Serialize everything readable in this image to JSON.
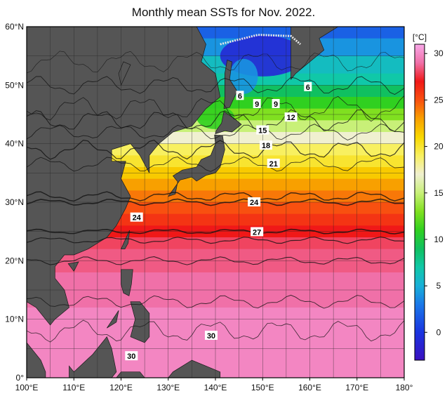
{
  "title": "Monthly mean SSTs for Nov. 2022.",
  "map": {
    "lon_range": [
      100,
      180
    ],
    "lat_range": [
      0,
      60
    ],
    "land_color": "#555555",
    "ice_color": "#e8e8e8",
    "grid_color": "#222222",
    "lon_ticks": [
      {
        "lon": 100,
        "label": "100°E"
      },
      {
        "lon": 110,
        "label": "110°E"
      },
      {
        "lon": 120,
        "label": "120°E"
      },
      {
        "lon": 130,
        "label": "130°E"
      },
      {
        "lon": 140,
        "label": "140°E"
      },
      {
        "lon": 150,
        "label": "150°E"
      },
      {
        "lon": 160,
        "label": "160°E"
      },
      {
        "lon": 170,
        "label": "170°E"
      },
      {
        "lon": 180,
        "label": "180°"
      }
    ],
    "lat_ticks": [
      {
        "lat": 0,
        "label": "0°"
      },
      {
        "lat": 10,
        "label": "10°N"
      },
      {
        "lat": 20,
        "label": "20°N"
      },
      {
        "lat": 30,
        "label": "30°N"
      },
      {
        "lat": 40,
        "label": "40°N"
      },
      {
        "lat": 50,
        "label": "50°N"
      },
      {
        "lat": 60,
        "label": "60°N"
      }
    ],
    "sst_bands": [
      {
        "lat_s": 58,
        "lat_n": 60,
        "sst": 2
      },
      {
        "lat_s": 55,
        "lat_n": 58,
        "sst": 4
      },
      {
        "lat_s": 52,
        "lat_n": 55,
        "sst": 6
      },
      {
        "lat_s": 50,
        "lat_n": 52,
        "sst": 7
      },
      {
        "lat_s": 48,
        "lat_n": 50,
        "sst": 9
      },
      {
        "lat_s": 46,
        "lat_n": 48,
        "sst": 11
      },
      {
        "lat_s": 44,
        "lat_n": 46,
        "sst": 13
      },
      {
        "lat_s": 42,
        "lat_n": 44,
        "sst": 15
      },
      {
        "lat_s": 40,
        "lat_n": 42,
        "sst": 17
      },
      {
        "lat_s": 38,
        "lat_n": 40,
        "sst": 19
      },
      {
        "lat_s": 36,
        "lat_n": 38,
        "sst": 20
      },
      {
        "lat_s": 34,
        "lat_n": 36,
        "sst": 21.5
      },
      {
        "lat_s": 32,
        "lat_n": 34,
        "sst": 23
      },
      {
        "lat_s": 30,
        "lat_n": 32,
        "sst": 24
      },
      {
        "lat_s": 28,
        "lat_n": 30,
        "sst": 25
      },
      {
        "lat_s": 26,
        "lat_n": 28,
        "sst": 26
      },
      {
        "lat_s": 24,
        "lat_n": 26,
        "sst": 27
      },
      {
        "lat_s": 22,
        "lat_n": 24,
        "sst": 28
      },
      {
        "lat_s": 18,
        "lat_n": 22,
        "sst": 28.5
      },
      {
        "lat_s": 12,
        "lat_n": 18,
        "sst": 29
      },
      {
        "lat_s": 0,
        "lat_n": 12,
        "sst": 29.8
      }
    ],
    "cold_patches": [
      {
        "lon": 150,
        "lat": 55,
        "rx": 9,
        "ry": 3.5,
        "sst": -1
      },
      {
        "lon": 146,
        "lat": 51.5,
        "rx": 3,
        "ry": 3,
        "sst": 4
      },
      {
        "lon": 140,
        "lat": 44.5,
        "rx": 4,
        "ry": 2,
        "sst": 11
      }
    ],
    "contour_labels": [
      {
        "text": "6",
        "lon": 145.2,
        "lat": 48.2
      },
      {
        "text": "6",
        "lon": 159.6,
        "lat": 49.7
      },
      {
        "text": "9",
        "lon": 148.8,
        "lat": 46.8
      },
      {
        "text": "9",
        "lon": 152.8,
        "lat": 46.8
      },
      {
        "text": "12",
        "lon": 156.0,
        "lat": 44.5
      },
      {
        "text": "15",
        "lon": 150.0,
        "lat": 42.3
      },
      {
        "text": "18",
        "lon": 150.7,
        "lat": 39.7
      },
      {
        "text": "21",
        "lon": 152.3,
        "lat": 36.6
      },
      {
        "text": "24",
        "lon": 148.2,
        "lat": 30.0
      },
      {
        "text": "24",
        "lon": 123.3,
        "lat": 27.4
      },
      {
        "text": "27",
        "lon": 148.8,
        "lat": 24.9
      },
      {
        "text": "30",
        "lon": 139.1,
        "lat": 7.2
      },
      {
        "text": "30",
        "lon": 122.2,
        "lat": 3.7
      }
    ]
  },
  "colorbar": {
    "unit": "[°C]",
    "min": -3,
    "max": 31,
    "ticks": [
      {
        "value": 0,
        "label": "0"
      },
      {
        "value": 5,
        "label": "5"
      },
      {
        "value": 10,
        "label": "10"
      },
      {
        "value": 15,
        "label": "15"
      },
      {
        "value": 20,
        "label": "20"
      },
      {
        "value": 25,
        "label": "25"
      },
      {
        "value": 30,
        "label": "30"
      }
    ],
    "stops": [
      {
        "value": -3,
        "color": "#3a10c0"
      },
      {
        "value": 0,
        "color": "#1a34e0"
      },
      {
        "value": 3,
        "color": "#1a78e8"
      },
      {
        "value": 5,
        "color": "#18b0d8"
      },
      {
        "value": 7,
        "color": "#10c8a8"
      },
      {
        "value": 9,
        "color": "#10c060"
      },
      {
        "value": 11,
        "color": "#30d020"
      },
      {
        "value": 13,
        "color": "#80e020"
      },
      {
        "value": 15,
        "color": "#c8f078"
      },
      {
        "value": 17,
        "color": "#f0f0d0"
      },
      {
        "value": 19,
        "color": "#f8f060"
      },
      {
        "value": 21,
        "color": "#f8d800"
      },
      {
        "value": 23,
        "color": "#f8a000"
      },
      {
        "value": 25,
        "color": "#f85010"
      },
      {
        "value": 27,
        "color": "#f01818"
      },
      {
        "value": 29,
        "color": "#f070a8"
      },
      {
        "value": 31,
        "color": "#f8a8e8"
      }
    ]
  }
}
